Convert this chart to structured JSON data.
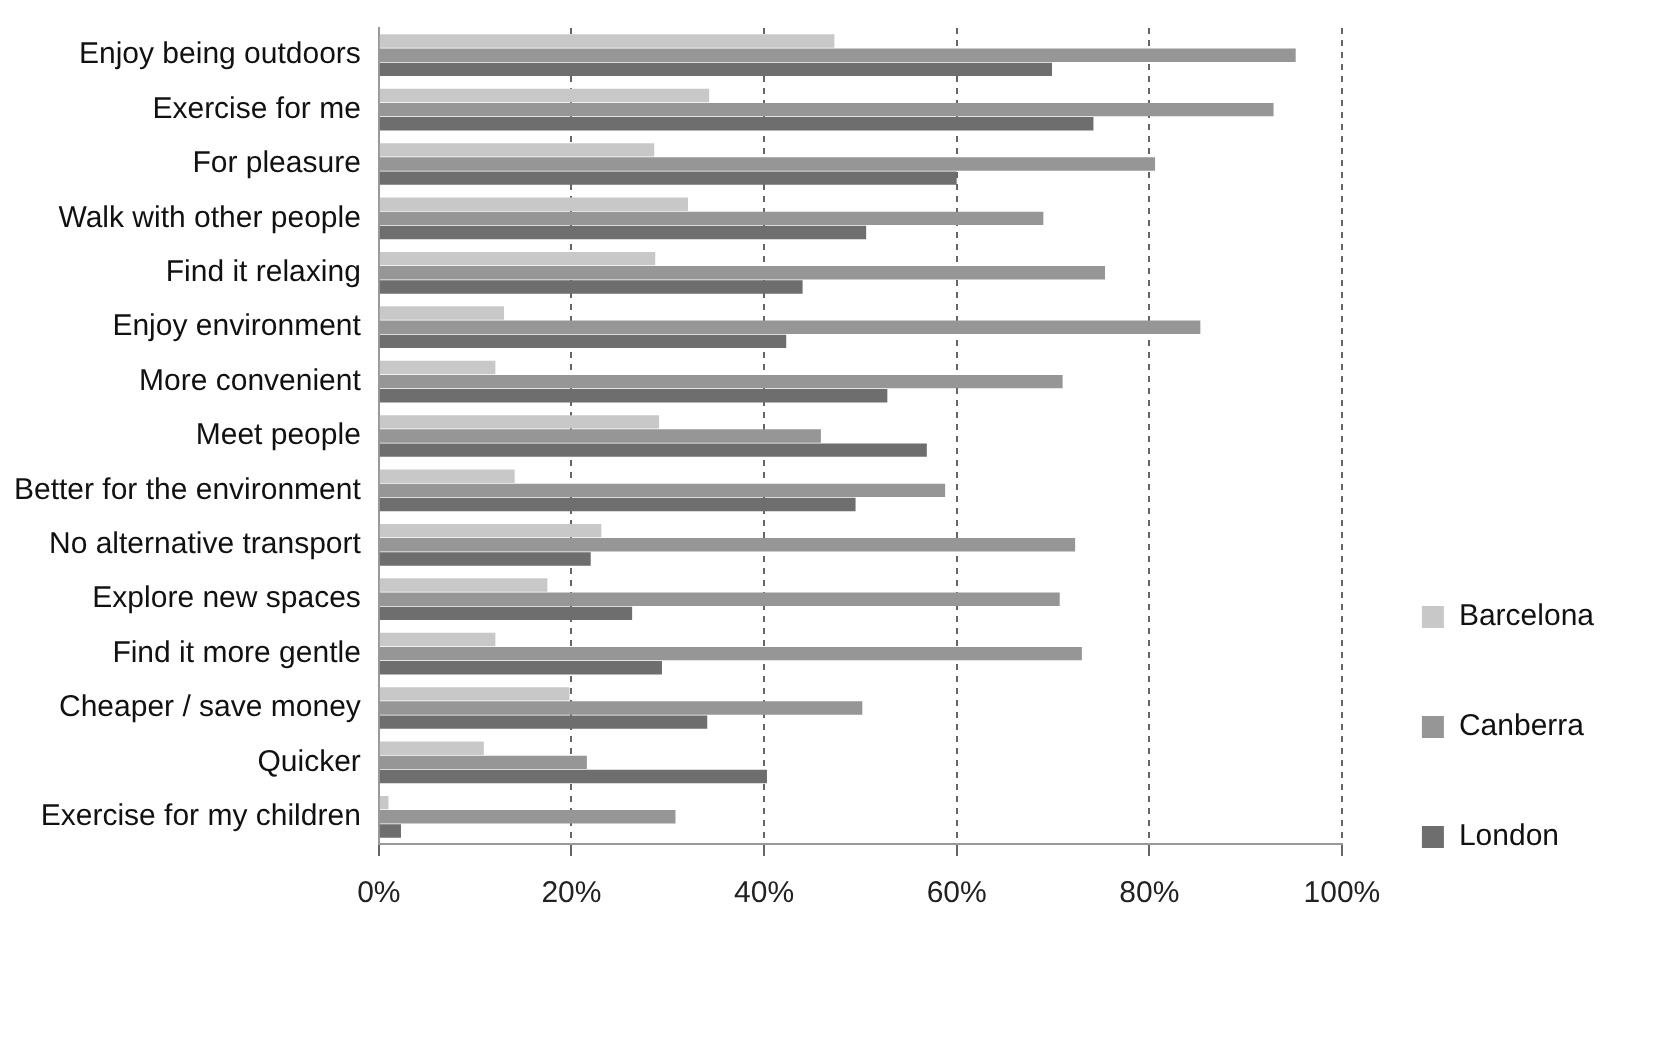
{
  "chart_data": {
    "type": "bar",
    "orientation": "horizontal",
    "categories": [
      "Enjoy being outdoors",
      "Exercise for me",
      "For pleasure",
      "Walk with other people",
      "Find it relaxing",
      "Enjoy environment",
      "More convenient",
      "Meet people",
      "Better for the environment",
      "No alternative transport",
      "Explore new spaces",
      "Find it more gentle",
      "Cheaper / save money",
      "Quicker",
      "Exercise for my children"
    ],
    "series": [
      {
        "name": "Barcelona",
        "color": "#c8c8c8",
        "values": [
          47.3,
          34.3,
          28.6,
          32.1,
          28.7,
          13.0,
          12.1,
          29.1,
          14.1,
          23.1,
          17.5,
          12.1,
          19.8,
          10.9,
          1.0
        ]
      },
      {
        "name": "Canberra",
        "color": "#969696",
        "values": [
          95.2,
          92.9,
          80.6,
          69.0,
          75.4,
          85.3,
          71.0,
          45.9,
          58.8,
          72.3,
          70.7,
          73.0,
          50.2,
          21.6,
          30.8
        ]
      },
      {
        "name": "London",
        "color": "#6e6e6e",
        "values": [
          69.9,
          74.2,
          60.0,
          50.6,
          44.0,
          42.3,
          52.8,
          56.9,
          49.5,
          22.0,
          26.3,
          29.4,
          34.1,
          40.3,
          2.3
        ]
      }
    ],
    "xlim": [
      0,
      100
    ],
    "xticks": [
      {
        "value": 0,
        "label": "0%"
      },
      {
        "value": 20,
        "label": "20%"
      },
      {
        "value": 40,
        "label": "40%"
      },
      {
        "value": 60,
        "label": "60%"
      },
      {
        "value": 80,
        "label": "80%"
      },
      {
        "value": 100,
        "label": "100%"
      }
    ],
    "grid": "x",
    "legend": "right"
  }
}
